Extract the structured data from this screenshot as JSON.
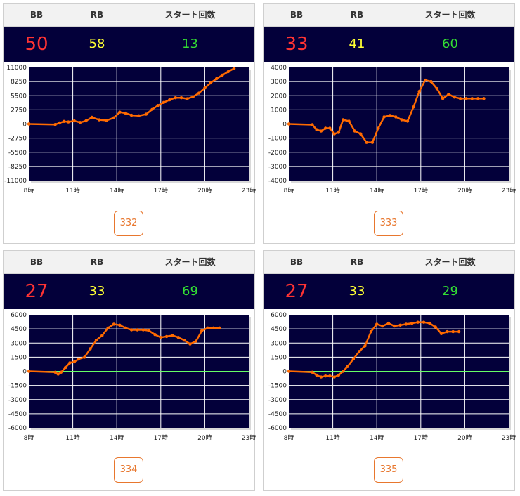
{
  "header": {
    "bb_label": "BB",
    "rb_label": "RB",
    "start_label": "スタート回数"
  },
  "colors": {
    "plot_background": "#03003a",
    "series_line": "#ff6a00",
    "zero_line": "#66ff66",
    "bb_text": "#ff3333",
    "rb_text": "#ffff33",
    "start_text": "#33dd33",
    "machine_button": "#e8772e"
  },
  "x_tick_labels": [
    "8時",
    "11時",
    "14時",
    "17時",
    "20時",
    "23時"
  ],
  "panels": [
    {
      "bb": "50",
      "rb": "58",
      "start": "13",
      "machine": "332",
      "y_tick_labels": [
        "11000",
        "8250",
        "5500",
        "2750",
        "0",
        "-2750",
        "-5500",
        "-8250",
        "-11000"
      ]
    },
    {
      "bb": "33",
      "rb": "41",
      "start": "60",
      "machine": "333",
      "y_tick_labels": [
        "4000",
        "3000",
        "2000",
        "1000",
        "0",
        "-1000",
        "-2000",
        "-3000",
        "-4000"
      ]
    },
    {
      "bb": "27",
      "rb": "33",
      "start": "69",
      "machine": "334",
      "y_tick_labels": [
        "6000",
        "4500",
        "3000",
        "1500",
        "0",
        "-1500",
        "-3000",
        "-4500",
        "-6000"
      ]
    },
    {
      "bb": "27",
      "rb": "33",
      "start": "29",
      "machine": "335",
      "y_tick_labels": [
        "6000",
        "4500",
        "3000",
        "1500",
        "0",
        "-1500",
        "-3000",
        "-4500",
        "-6000"
      ]
    }
  ],
  "chart_data": [
    {
      "type": "line",
      "xlim": [
        8,
        23
      ],
      "ylim": [
        -11000,
        11000
      ],
      "x": [
        8,
        9.8,
        10.1,
        10.4,
        10.7,
        11.1,
        11.5,
        11.9,
        12.3,
        12.8,
        13.3,
        13.8,
        14.2,
        14.6,
        15,
        15.5,
        16,
        16.4,
        16.8,
        17.2,
        17.6,
        18,
        18.4,
        18.8,
        19.2,
        19.6,
        20,
        20.4,
        20.8,
        21.2,
        21.6,
        22
      ],
      "values": [
        0,
        -100,
        200,
        500,
        400,
        600,
        300,
        600,
        1300,
        800,
        700,
        1200,
        2300,
        2100,
        1700,
        1600,
        1900,
        2800,
        3600,
        4200,
        4700,
        5100,
        5100,
        4900,
        5300,
        6000,
        7000,
        8000,
        8800,
        9500,
        10200,
        10800
      ]
    },
    {
      "type": "line",
      "xlim": [
        8,
        23
      ],
      "ylim": [
        -4000,
        4000
      ],
      "x": [
        8,
        9.6,
        9.9,
        10.2,
        10.5,
        10.8,
        11.1,
        11.4,
        11.7,
        12.1,
        12.5,
        12.9,
        13.3,
        13.7,
        14.1,
        14.5,
        14.9,
        15.3,
        15.7,
        16.1,
        16.5,
        16.9,
        17.3,
        17.7,
        18.1,
        18.5,
        18.9,
        19.3,
        19.7,
        20.1,
        20.5,
        20.9,
        21.3
      ],
      "values": [
        0,
        -50,
        -400,
        -500,
        -300,
        -300,
        -700,
        -600,
        300,
        200,
        -500,
        -700,
        -1300,
        -1300,
        -300,
        500,
        600,
        500,
        300,
        200,
        1200,
        2300,
        3100,
        3000,
        2500,
        1800,
        2100,
        1900,
        1800,
        1800,
        1800,
        1800,
        1800
      ]
    },
    {
      "type": "line",
      "xlim": [
        8,
        23
      ],
      "ylim": [
        -6000,
        6000
      ],
      "x": [
        8,
        9.8,
        10.0,
        10.2,
        10.5,
        10.8,
        11.1,
        11.4,
        11.8,
        12.2,
        12.6,
        13,
        13.4,
        13.8,
        14.2,
        14.6,
        15,
        15.4,
        15.8,
        16.2,
        16.6,
        17,
        17.4,
        17.8,
        18.2,
        18.6,
        19,
        19.4,
        19.8,
        20.2,
        20.6,
        21
      ],
      "values": [
        0,
        -100,
        -300,
        -100,
        400,
        900,
        1000,
        1300,
        1500,
        2400,
        3300,
        3800,
        4600,
        5000,
        4900,
        4600,
        4400,
        4400,
        4400,
        4300,
        3900,
        3600,
        3700,
        3800,
        3600,
        3300,
        2900,
        3200,
        4300,
        4600,
        4600,
        4600
      ]
    },
    {
      "type": "line",
      "xlim": [
        8,
        23
      ],
      "ylim": [
        -6000,
        6000
      ],
      "x": [
        8,
        9.6,
        9.9,
        10.2,
        10.5,
        10.8,
        11.1,
        11.4,
        11.7,
        12,
        12.4,
        12.8,
        13.2,
        13.6,
        14,
        14.4,
        14.8,
        15.2,
        15.6,
        16,
        16.4,
        16.8,
        17.2,
        17.6,
        18,
        18.4,
        18.8,
        19.2,
        19.6
      ],
      "values": [
        0,
        -100,
        -400,
        -600,
        -500,
        -500,
        -600,
        -400,
        0,
        500,
        1300,
        2100,
        2700,
        4200,
        5000,
        4800,
        5100,
        4800,
        4900,
        5000,
        5100,
        5200,
        5200,
        5100,
        4700,
        4000,
        4200,
        4200,
        4200
      ]
    }
  ]
}
